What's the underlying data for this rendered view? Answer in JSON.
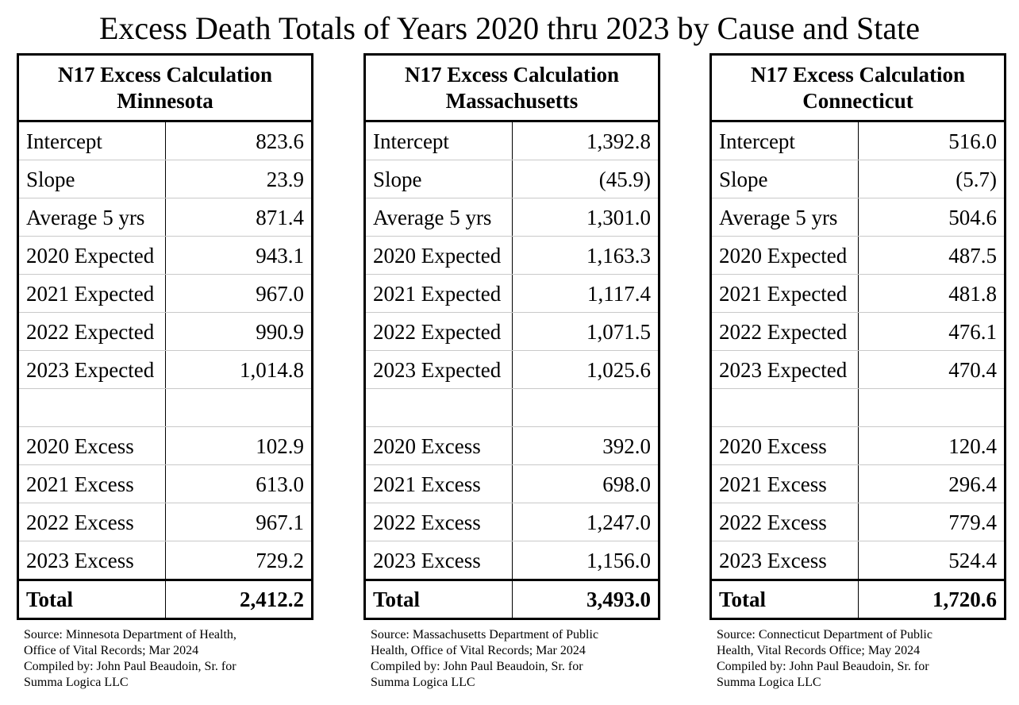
{
  "title": "Excess Death Totals of Years 2020 thru 2023 by Cause and State",
  "panels": [
    {
      "heading_line1": "N17 Excess Calculation",
      "state": "Minnesota",
      "rows": [
        {
          "label": "Intercept",
          "value": "823.6"
        },
        {
          "label": "Slope",
          "value": "23.9"
        },
        {
          "label": "Average 5 yrs",
          "value": "871.4"
        },
        {
          "label": "2020 Expected",
          "value": "943.1"
        },
        {
          "label": "2021 Expected",
          "value": "967.0"
        },
        {
          "label": "2022 Expected",
          "value": "990.9"
        },
        {
          "label": "2023 Expected",
          "value": "1,014.8"
        },
        {
          "label": "",
          "value": ""
        },
        {
          "label": "2020 Excess",
          "value": "102.9"
        },
        {
          "label": "2021 Excess",
          "value": "613.0"
        },
        {
          "label": "2022 Excess",
          "value": "967.1"
        },
        {
          "label": "2023 Excess",
          "value": "729.2"
        }
      ],
      "total_label": "Total",
      "total_value": "2,412.2",
      "source_lines": [
        "Source:  Minnesota Department of Health,",
        "Office of Vital Records; Mar 2024",
        "Compiled by:  John Paul Beaudoin, Sr. for",
        "Summa Logica LLC"
      ]
    },
    {
      "heading_line1": "N17 Excess Calculation",
      "state": "Massachusetts",
      "rows": [
        {
          "label": "Intercept",
          "value": "1,392.8"
        },
        {
          "label": "Slope",
          "value": "(45.9)"
        },
        {
          "label": "Average 5 yrs",
          "value": "1,301.0"
        },
        {
          "label": "2020 Expected",
          "value": "1,163.3"
        },
        {
          "label": "2021 Expected",
          "value": "1,117.4"
        },
        {
          "label": "2022 Expected",
          "value": "1,071.5"
        },
        {
          "label": "2023 Expected",
          "value": "1,025.6"
        },
        {
          "label": "",
          "value": ""
        },
        {
          "label": "2020 Excess",
          "value": "392.0"
        },
        {
          "label": "2021 Excess",
          "value": "698.0"
        },
        {
          "label": "2022 Excess",
          "value": "1,247.0"
        },
        {
          "label": "2023 Excess",
          "value": "1,156.0"
        }
      ],
      "total_label": "Total",
      "total_value": "3,493.0",
      "source_lines": [
        "Source:  Massachusetts Department of Public",
        "Health, Office of Vital Records; Mar 2024",
        "Compiled by:  John Paul Beaudoin, Sr. for",
        "Summa Logica LLC"
      ]
    },
    {
      "heading_line1": "N17 Excess Calculation",
      "state": "Connecticut",
      "rows": [
        {
          "label": "Intercept",
          "value": "516.0"
        },
        {
          "label": "Slope",
          "value": "(5.7)"
        },
        {
          "label": "Average 5 yrs",
          "value": "504.6"
        },
        {
          "label": "2020 Expected",
          "value": "487.5"
        },
        {
          "label": "2021 Expected",
          "value": "481.8"
        },
        {
          "label": "2022 Expected",
          "value": "476.1"
        },
        {
          "label": "2023 Expected",
          "value": "470.4"
        },
        {
          "label": "",
          "value": ""
        },
        {
          "label": "2020 Excess",
          "value": "120.4"
        },
        {
          "label": "2021 Excess",
          "value": "296.4"
        },
        {
          "label": "2022 Excess",
          "value": "779.4"
        },
        {
          "label": "2023 Excess",
          "value": "524.4"
        }
      ],
      "total_label": "Total",
      "total_value": "1,720.6",
      "source_lines": [
        "Source:  Connecticut Department of Public",
        "Health, Vital Records Office; May 2024",
        "Compiled by:  John Paul Beaudoin, Sr. for",
        "Summa Logica LLC"
      ]
    }
  ]
}
